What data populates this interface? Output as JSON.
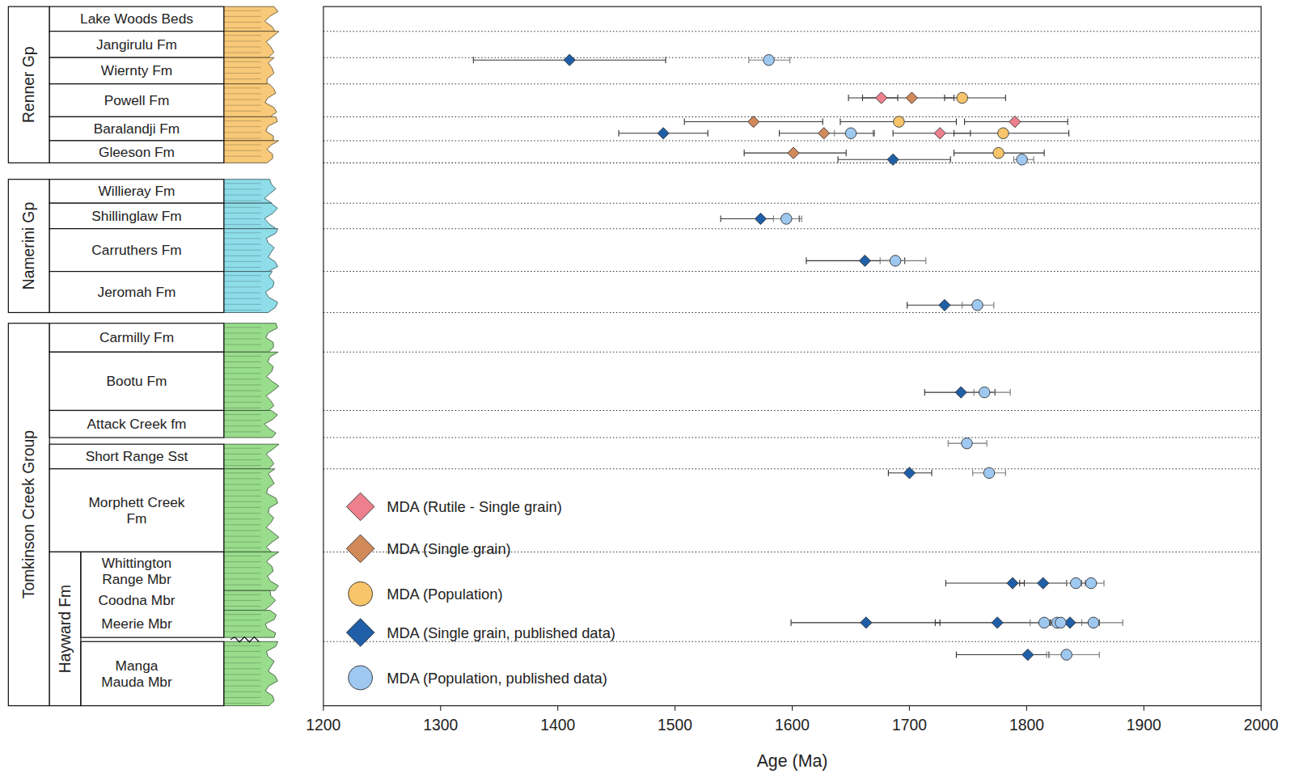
{
  "chart_data": {
    "type": "scatter",
    "x_label": "Age (Ma)",
    "xlim": [
      1200,
      2000
    ],
    "xticks": [
      1200,
      1300,
      1400,
      1500,
      1600,
      1700,
      1800,
      1900,
      2000
    ],
    "ylim": [
      850,
      0
    ],
    "tick_labels": "x",
    "grid": false,
    "legend": "lower left",
    "series": [
      {
        "name": "MDA (Rutile - Single grain)",
        "color": "#ee7f8c",
        "marker": "diamond",
        "x": [
          1676,
          1790,
          1726
        ],
        "y": [
          111,
          140,
          154
        ],
        "xerr": [
          [
            28,
            14
          ],
          [
            43,
            45
          ],
          [
            40,
            26
          ]
        ]
      },
      {
        "name": "MDA (Single grain)",
        "color": "#d2895a",
        "marker": "diamond",
        "x": [
          1702,
          1567,
          1627,
          1601
        ],
        "y": [
          111,
          140,
          154,
          178
        ],
        "xerr": [
          [
            42,
            36
          ],
          [
            59,
            59
          ],
          [
            38,
            43
          ],
          [
            42,
            45
          ]
        ]
      },
      {
        "name": "MDA (Population)",
        "color": "#f8c56a",
        "marker": "circle",
        "x": [
          1745,
          1691,
          1780,
          1776
        ],
        "y": [
          111,
          140,
          154,
          178
        ],
        "xerr": [
          [
            15,
            37
          ],
          [
            50,
            49
          ],
          [
            42,
            56
          ],
          [
            38,
            39
          ]
        ]
      },
      {
        "name": "MDA (Single grain, published data)",
        "color": "#1f5fa8",
        "marker": "diamond",
        "x": [
          1410,
          1490,
          1686,
          1573,
          1662,
          1730,
          1744,
          1700,
          1788,
          1814,
          1663,
          1775,
          1837,
          1801
        ],
        "y": [
          65,
          154,
          186,
          258,
          309,
          363,
          469,
          567,
          701,
          701,
          749,
          749,
          749,
          788
        ],
        "xerr": [
          [
            82,
            82
          ],
          [
            38,
            38
          ],
          [
            47,
            49
          ],
          [
            34,
            33
          ],
          [
            50,
            34
          ],
          [
            32,
            29
          ],
          [
            31,
            29
          ],
          [
            18,
            19
          ],
          [
            57,
            10
          ],
          [
            20,
            20
          ],
          [
            64,
            63
          ],
          [
            53,
            53
          ],
          [
            17,
            25
          ],
          [
            61,
            18
          ]
        ]
      },
      {
        "name": "MDA (Population, published data)",
        "color": "#9ec8f0",
        "marker": "circle",
        "x": [
          1580,
          1650,
          1796,
          1595,
          1688,
          1758,
          1764,
          1749,
          1768,
          1842,
          1855,
          1815,
          1826,
          1829,
          1857,
          1834
        ],
        "y": [
          65,
          154,
          186,
          258,
          309,
          363,
          469,
          531,
          567,
          701,
          701,
          749,
          749,
          749,
          749,
          788
        ],
        "xerr": [
          [
            17,
            18
          ],
          [
            14,
            19
          ],
          [
            7,
            10
          ],
          [
            11,
            13
          ],
          [
            13,
            26
          ],
          [
            13,
            14
          ],
          [
            9,
            22
          ],
          [
            16,
            17
          ],
          [
            14,
            14
          ],
          [
            8,
            8
          ],
          [
            8,
            11
          ],
          [
            12,
            12
          ],
          [
            10,
            10
          ],
          [
            8,
            8
          ],
          [
            10,
            25
          ],
          [
            17,
            28
          ]
        ]
      }
    ]
  },
  "stratigraphy": {
    "groups": [
      {
        "name": "Renner Gp",
        "top": 0,
        "bottom": 190,
        "color": "#f7c978",
        "units": [
          {
            "name": "Lake Woods Beds",
            "top": 0,
            "bottom": 30
          },
          {
            "name": "Jangirulu Fm",
            "top": 30,
            "bottom": 62
          },
          {
            "name": "Wiernty Fm",
            "top": 62,
            "bottom": 94
          },
          {
            "name": "Powell Fm",
            "top": 94,
            "bottom": 134
          },
          {
            "name": "Baralandji Fm",
            "top": 134,
            "bottom": 163
          },
          {
            "name": "Gleeson Fm",
            "top": 163,
            "bottom": 190
          }
        ]
      },
      {
        "name": "Namerini Gp",
        "top": 210,
        "bottom": 372,
        "color": "#8edde9",
        "units": [
          {
            "name": "Willieray Fm",
            "top": 210,
            "bottom": 239
          },
          {
            "name": "Shillinglaw Fm",
            "top": 239,
            "bottom": 270
          },
          {
            "name": "Carruthers Fm",
            "top": 270,
            "bottom": 322
          },
          {
            "name": "Jeromah Fm",
            "top": 322,
            "bottom": 372
          }
        ]
      },
      {
        "name": "Tomkinson Creek Group",
        "top": 385,
        "bottom": 850,
        "color": "#98dc8c",
        "units": [
          {
            "name": "Carmilly Fm",
            "top": 385,
            "bottom": 420
          },
          {
            "name": "Bootu Fm",
            "top": 420,
            "bottom": 491
          },
          {
            "name": "Attack Creek fm",
            "top": 491,
            "bottom": 524
          },
          {
            "name": "Short Range Sst",
            "top": 532,
            "bottom": 562
          },
          {
            "name": "Morphett Creek Fm",
            "top": 562,
            "bottom": 663
          }
        ],
        "subgroups": [
          {
            "name": "Hayward Fm",
            "top": 663,
            "bottom": 850,
            "members": [
              {
                "name": "Whittington Range Mbr",
                "top": 663,
                "bottom": 710
              },
              {
                "name": "Coodna Mbr",
                "top": 710,
                "bottom": 734
              },
              {
                "name": "Meerie Mbr",
                "top": 734,
                "bottom": 767
              },
              {
                "name": "Manga Mauda Mbr",
                "top": 772,
                "bottom": 850
              }
            ]
          }
        ]
      }
    ]
  }
}
